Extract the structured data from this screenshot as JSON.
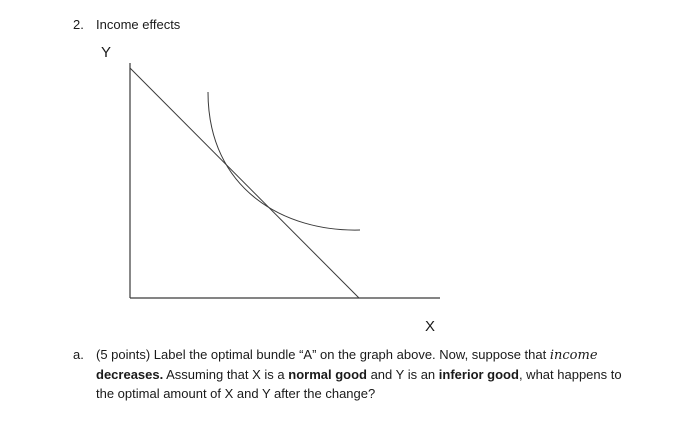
{
  "question_number": "2.",
  "title": "Income effects",
  "graph": {
    "y_label": "Y",
    "x_label": "X",
    "elements": [
      "y-axis",
      "x-axis",
      "budget-line",
      "indifference-curve"
    ]
  },
  "part_a": {
    "letter": "a.",
    "t1": "(5 points) Label the optimal bundle “A” on the graph above. Now, suppose that ",
    "t2": "income",
    "t3": "decreases.",
    "t4": " Assuming that X is a ",
    "t5": "normal good",
    "t6": " and Y is an ",
    "t7": "inferior good",
    "t8": ", what happens to the optimal amount of X and Y after the change?"
  }
}
